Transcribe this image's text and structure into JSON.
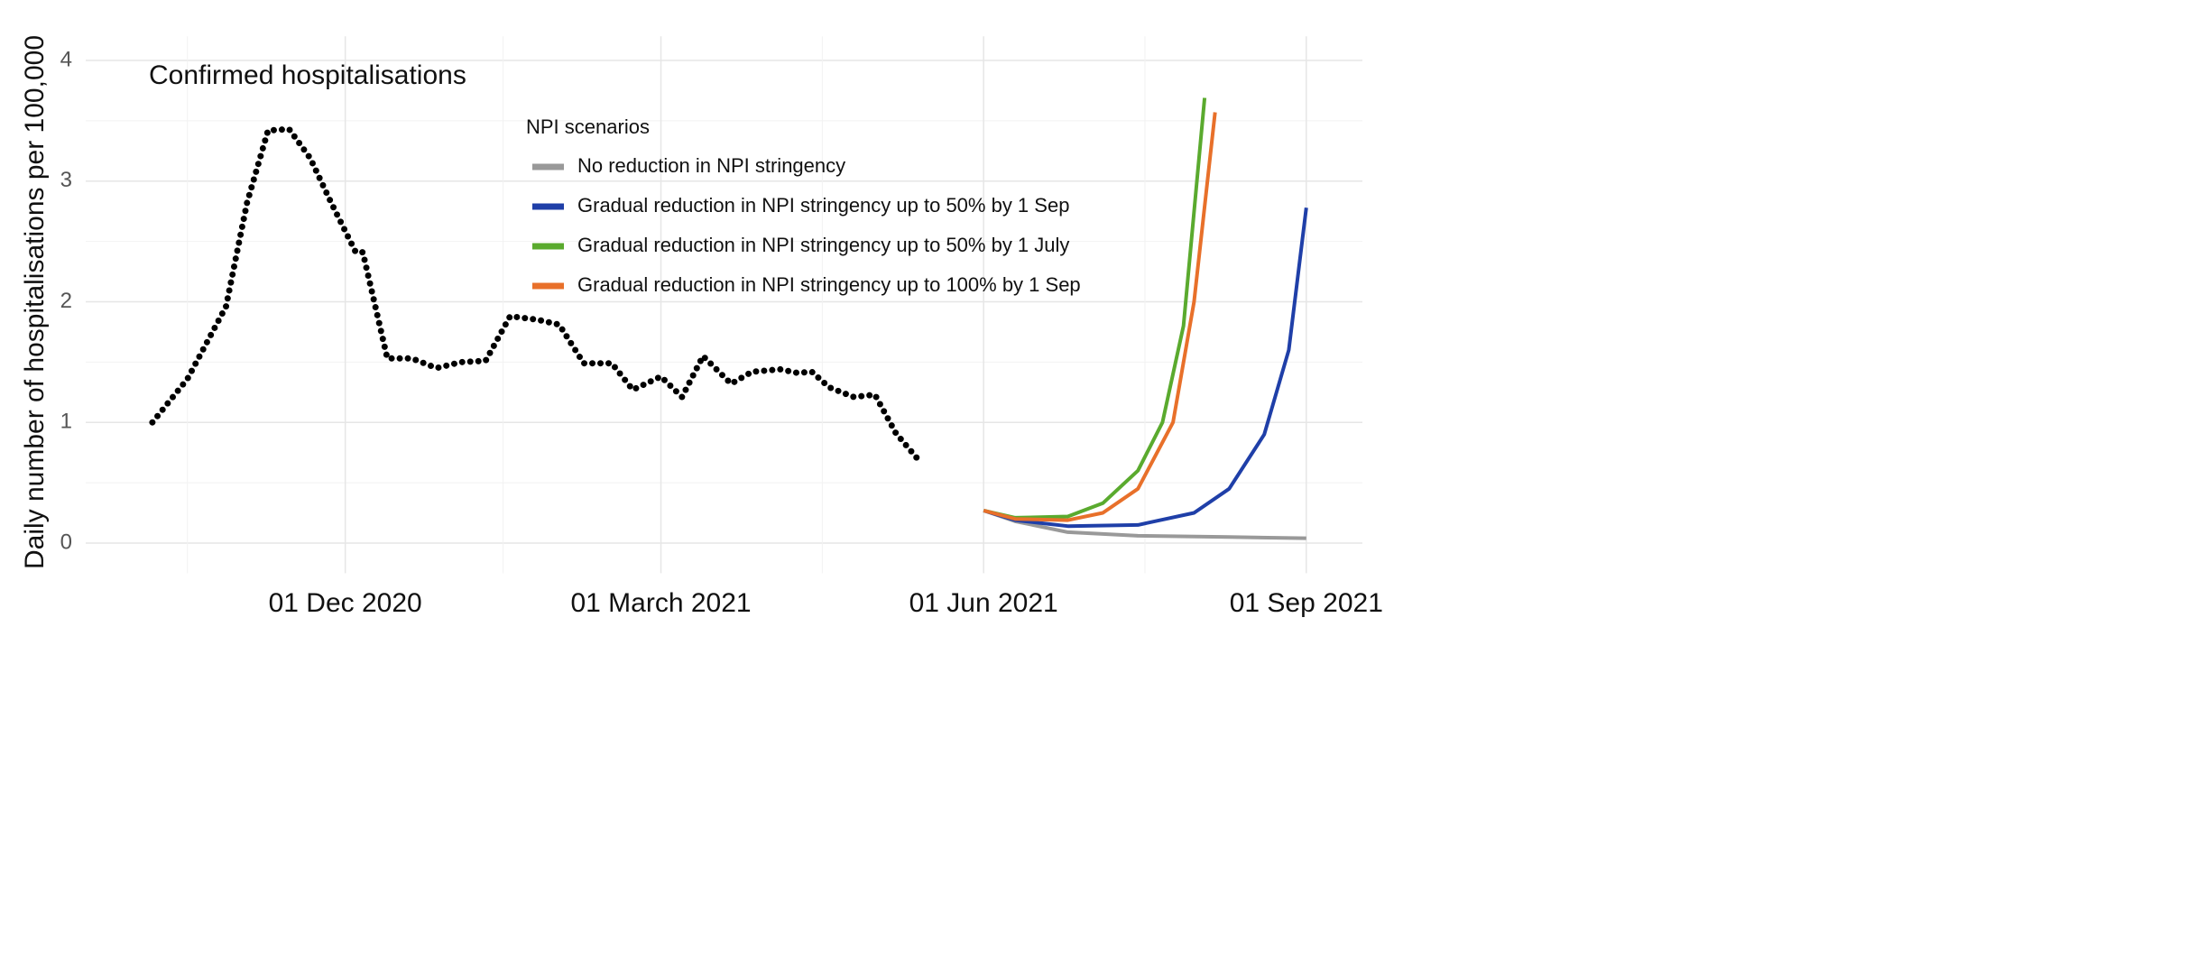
{
  "chart_data": {
    "type": "line",
    "annotation": "Confirmed hospitalisations",
    "y_label": "Daily number of hospitalisations per 100,000",
    "xlim": [
      "2020-09-18",
      "2021-09-17"
    ],
    "xticks": [
      {
        "value": "2020-12-01",
        "label": "01 Dec 2020"
      },
      {
        "value": "2021-03-01",
        "label": "01 March 2021"
      },
      {
        "value": "2021-06-01",
        "label": "01 Jun 2021"
      },
      {
        "value": "2021-09-01",
        "label": "01 Sep 2021"
      }
    ],
    "ylim": [
      -0.25,
      4.2
    ],
    "yticks": [
      0,
      1,
      2,
      3,
      4
    ],
    "grid": true,
    "legend_title": "NPI scenarios",
    "observed": {
      "color": "#000000",
      "x": [
        "2020-10-07",
        "2020-10-17",
        "2020-10-28",
        "2020-11-03",
        "2020-11-09",
        "2020-11-15",
        "2020-11-21",
        "2020-11-27",
        "2020-12-04",
        "2020-12-06",
        "2020-12-13",
        "2020-12-20",
        "2020-12-27",
        "2021-01-03",
        "2021-01-10",
        "2021-01-17",
        "2021-01-25",
        "2021-01-31",
        "2021-02-07",
        "2021-02-15",
        "2021-02-21",
        "2021-03-01",
        "2021-03-07",
        "2021-03-13",
        "2021-03-21",
        "2021-03-27",
        "2021-04-04",
        "2021-04-09",
        "2021-04-13",
        "2021-04-18",
        "2021-04-25",
        "2021-05-01",
        "2021-05-07",
        "2021-05-14"
      ],
      "values": [
        1.0,
        1.36,
        1.96,
        2.82,
        3.42,
        3.43,
        3.19,
        2.82,
        2.41,
        2.41,
        1.53,
        1.53,
        1.45,
        1.5,
        1.51,
        1.88,
        1.85,
        1.81,
        1.49,
        1.49,
        1.27,
        1.38,
        1.21,
        1.55,
        1.32,
        1.42,
        1.44,
        1.41,
        1.42,
        1.29,
        1.21,
        1.23,
        0.91,
        0.67
      ]
    },
    "series": [
      {
        "name": "No reduction in NPI stringency",
        "color": "#999999",
        "x": [
          "2021-06-01",
          "2021-06-10",
          "2021-06-25",
          "2021-07-15",
          "2021-08-10",
          "2021-09-01"
        ],
        "values": [
          0.27,
          0.18,
          0.09,
          0.06,
          0.05,
          0.04
        ]
      },
      {
        "name": "Gradual reduction in NPI stringency up to 50% by 1 Sep",
        "color": "#1f3fa8",
        "x": [
          "2021-06-01",
          "2021-06-10",
          "2021-06-25",
          "2021-07-15",
          "2021-07-31",
          "2021-08-10",
          "2021-08-20",
          "2021-08-27",
          "2021-09-01"
        ],
        "values": [
          0.27,
          0.19,
          0.14,
          0.15,
          0.25,
          0.45,
          0.9,
          1.6,
          2.78
        ]
      },
      {
        "name": "Gradual reduction in NPI stringency up to 50% by 1 July",
        "color": "#5aaa2e",
        "x": [
          "2021-06-01",
          "2021-06-10",
          "2021-06-25",
          "2021-07-05",
          "2021-07-15",
          "2021-07-22",
          "2021-07-28",
          "2021-08-03"
        ],
        "values": [
          0.27,
          0.21,
          0.22,
          0.33,
          0.6,
          1.0,
          1.8,
          3.69
        ]
      },
      {
        "name": "Gradual reduction in NPI stringency up to 100% by 1 Sep",
        "color": "#e8702a",
        "x": [
          "2021-06-01",
          "2021-06-10",
          "2021-06-25",
          "2021-07-05",
          "2021-07-15",
          "2021-07-25",
          "2021-07-31",
          "2021-08-06"
        ],
        "values": [
          0.27,
          0.2,
          0.19,
          0.25,
          0.45,
          1.0,
          2.0,
          3.57
        ]
      }
    ]
  }
}
